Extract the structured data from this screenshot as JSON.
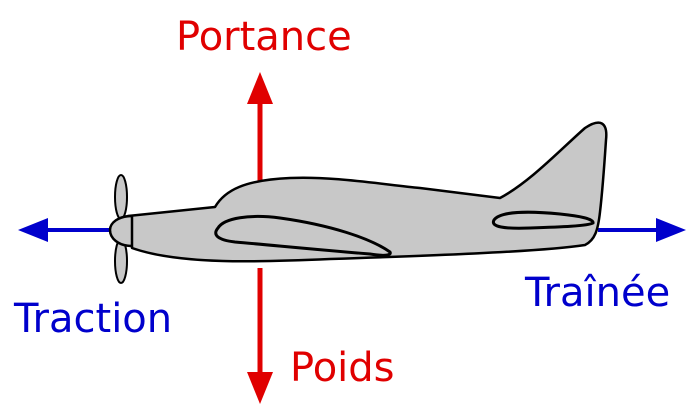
{
  "forces": {
    "lift": {
      "label": "Portance",
      "color": "#e00000"
    },
    "weight": {
      "label": "Poids",
      "color": "#e00000"
    },
    "thrust": {
      "label": "Traction",
      "color": "#0000cc"
    },
    "drag": {
      "label": "Traînée",
      "color": "#0000cc"
    }
  },
  "aircraft": {
    "fuselage_color": "#c8c8c8",
    "outline_color": "#000000"
  }
}
